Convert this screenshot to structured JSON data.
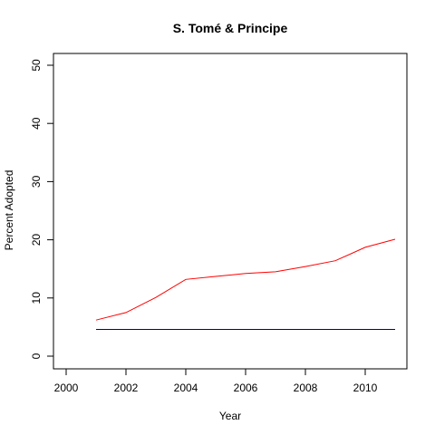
{
  "chart_data": {
    "type": "line",
    "title": "S. Tomé & Principe",
    "xlabel": "Year",
    "ylabel": "Percent Adopted",
    "xlim": [
      2000,
      2011
    ],
    "ylim": [
      0,
      50
    ],
    "x_ticks": [
      2000,
      2002,
      2004,
      2006,
      2008,
      2010
    ],
    "y_ticks": [
      0,
      10,
      20,
      30,
      40,
      50
    ],
    "grid": false,
    "series": [
      {
        "color": "#ff0000",
        "x": [
          2001,
          2002,
          2003,
          2004,
          2005,
          2006,
          2007,
          2008,
          2009,
          2010,
          2011
        ],
        "values": [
          6.2,
          7.5,
          10.1,
          13.2,
          13.7,
          14.2,
          14.5,
          15.4,
          16.4,
          18.7,
          20.1
        ]
      },
      {
        "color": "#00008b",
        "x": [
          2001,
          2011
        ],
        "values": [
          4.6,
          4.6
        ]
      }
    ]
  }
}
